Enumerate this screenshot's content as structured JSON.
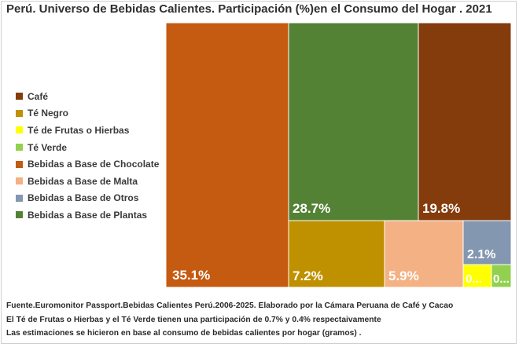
{
  "chart_data": {
    "type": "treemap",
    "title": "Perú. Universo de Bebidas Calientes. Participación (%)en el Consumo del Hogar . 2021",
    "unit": "%",
    "legend_position": "left",
    "segments": [
      {
        "name": "Bebidas a Base de Chocolate",
        "value": 35.1,
        "label": "35.1%",
        "color": "#C55A11"
      },
      {
        "name": "Bebidas a Base de Plantas",
        "value": 28.7,
        "label": "28.7%",
        "color": "#548235"
      },
      {
        "name": "Café",
        "value": 19.8,
        "label": "19.8%",
        "color": "#843C0C"
      },
      {
        "name": "Té Negro",
        "value": 7.2,
        "label": "7.2%",
        "color": "#BF9000"
      },
      {
        "name": "Bebidas a Base de Malta",
        "value": 5.9,
        "label": "5.9%",
        "color": "#F4B183"
      },
      {
        "name": "Bebidas a Base de Otros",
        "value": 2.1,
        "label": "2.1%",
        "color": "#8497B0"
      },
      {
        "name": "Té de Frutas o Hierbas",
        "value": 0.7,
        "label": "0...",
        "color": "#FFFF00"
      },
      {
        "name": "Té Verde",
        "value": 0.4,
        "label": "0...",
        "color": "#92D050"
      }
    ],
    "legend": [
      {
        "name": "Café",
        "color": "#843C0C"
      },
      {
        "name": "Té Negro",
        "color": "#BF9000"
      },
      {
        "name": "Té de Frutas o Hierbas",
        "color": "#FFFF00"
      },
      {
        "name": "Té Verde",
        "color": "#92D050"
      },
      {
        "name": "Bebidas a Base de Chocolate",
        "color": "#C55A11"
      },
      {
        "name": "Bebidas a Base de Malta",
        "color": "#F4B183"
      },
      {
        "name": "Bebidas a Base de Otros",
        "color": "#8497B0"
      },
      {
        "name": "Bebidas a Base de Plantas",
        "color": "#548235"
      }
    ]
  },
  "source_notes": [
    "Fuente.Euromonitor Passport.Bebidas Calientes Perú.2006-2025. Elaborado por la Cámara Peruana de Café y Cacao",
    "El Té de Frutas o Hierbas y el Té Verde tienen una participación de 0.7% y 0.4% respectaivamente",
    "Las estimaciones se hicieron en base al consumo de bebidas calientes por hogar (gramos) ."
  ]
}
